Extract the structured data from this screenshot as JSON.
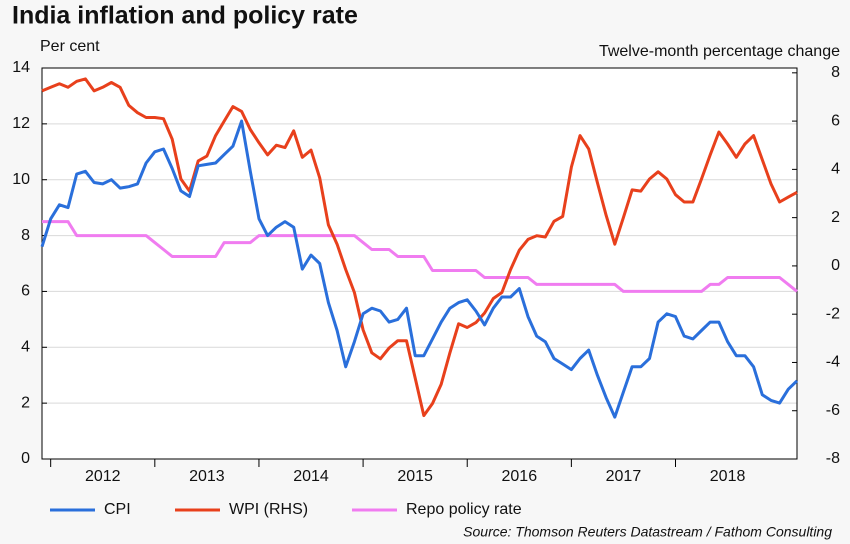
{
  "chart_data": {
    "type": "line",
    "title": "India inflation and policy rate",
    "y_label": "Per cent",
    "y2_label": "Twelve-month percentage change",
    "source": "Source: Thomson Reuters Datastream / Fathom Consulting",
    "categories": [
      null,
      null,
      null,
      null,
      null,
      null,
      null,
      "2012",
      null,
      null,
      null,
      null,
      null,
      null,
      null,
      null,
      null,
      null,
      null,
      "2013",
      null,
      null,
      null,
      null,
      null,
      null,
      null,
      null,
      null,
      null,
      null,
      "2014",
      null,
      null,
      null,
      null,
      null,
      null,
      null,
      null,
      null,
      null,
      null,
      "2015",
      null,
      null,
      null,
      null,
      null,
      null,
      null,
      null,
      null,
      null,
      null,
      "2016",
      null,
      null,
      null,
      null,
      null,
      null,
      null,
      null,
      null,
      null,
      null,
      "2017",
      null,
      null,
      null,
      null,
      null,
      null,
      null,
      null,
      null,
      null,
      null,
      "2018",
      null,
      null,
      null,
      null,
      null,
      null,
      null,
      null
    ],
    "series": [
      {
        "name": "CPI",
        "color": "#2a6fdb",
        "values": [
          7.6,
          8.6,
          9.1,
          9.0,
          10.2,
          10.3,
          9.9,
          9.85,
          10.0,
          9.7,
          9.75,
          9.85,
          10.6,
          11.0,
          11.1,
          10.4,
          9.6,
          9.4,
          10.5,
          10.55,
          10.6,
          10.9,
          11.2,
          12.1,
          10.3,
          8.6,
          8.0,
          8.3,
          8.5,
          8.3,
          6.8,
          7.3,
          7.0,
          5.6,
          4.6,
          3.3,
          4.2,
          5.2,
          5.4,
          5.3,
          4.9,
          5.0,
          5.4,
          3.7,
          3.7,
          4.3,
          4.9,
          5.4,
          5.6,
          5.7,
          5.3,
          4.8,
          5.4,
          5.8,
          5.8,
          6.1,
          5.1,
          4.4,
          4.2,
          3.6,
          3.4,
          3.2,
          3.6,
          3.9,
          3.0,
          2.2,
          1.5,
          2.4,
          3.3,
          3.3,
          3.6,
          4.9,
          5.2,
          5.1,
          4.4,
          4.3,
          4.6,
          4.9,
          4.9,
          4.2,
          3.7,
          3.7,
          3.3,
          2.3,
          2.1,
          2.0,
          2.5,
          2.8
        ]
      },
      {
        "name": "WPI (RHS)",
        "color": "#e8401c",
        "axis": "y2",
        "values": [
          7.25,
          7.4,
          7.55,
          7.4,
          7.65,
          7.75,
          7.25,
          7.4,
          7.6,
          7.4,
          6.65,
          6.35,
          6.15,
          6.15,
          6.1,
          5.25,
          3.6,
          3.1,
          4.35,
          4.55,
          5.4,
          6.0,
          6.6,
          6.4,
          5.65,
          5.1,
          4.6,
          5.0,
          4.9,
          5.6,
          4.5,
          4.8,
          3.65,
          1.7,
          0.9,
          -0.15,
          -1.1,
          -2.65,
          -3.6,
          -3.85,
          -3.4,
          -3.1,
          -3.1,
          -4.65,
          -6.2,
          -5.7,
          -4.9,
          -3.6,
          -2.4,
          -2.55,
          -2.35,
          -1.95,
          -1.35,
          -1.1,
          -0.15,
          0.65,
          1.1,
          1.25,
          1.2,
          1.85,
          2.05,
          4.1,
          5.4,
          4.85,
          3.45,
          2.1,
          0.9,
          2.0,
          3.15,
          3.1,
          3.6,
          3.9,
          3.6,
          2.95,
          2.65,
          2.65,
          3.6,
          4.6,
          5.55,
          5.05,
          4.5,
          5.05,
          5.4,
          4.4,
          3.4,
          2.65,
          2.85,
          3.05
        ]
      },
      {
        "name": "Repo policy rate",
        "color": "#f07cf0",
        "values": [
          8.5,
          8.5,
          8.5,
          8.5,
          8.0,
          8.0,
          8.0,
          8.0,
          8.0,
          8.0,
          8.0,
          8.0,
          8.0,
          7.75,
          7.5,
          7.25,
          7.25,
          7.25,
          7.25,
          7.25,
          7.25,
          7.75,
          7.75,
          7.75,
          7.75,
          8.0,
          8.0,
          8.0,
          8.0,
          8.0,
          8.0,
          8.0,
          8.0,
          8.0,
          8.0,
          8.0,
          8.0,
          7.75,
          7.5,
          7.5,
          7.5,
          7.25,
          7.25,
          7.25,
          7.25,
          6.75,
          6.75,
          6.75,
          6.75,
          6.75,
          6.75,
          6.5,
          6.5,
          6.5,
          6.5,
          6.5,
          6.5,
          6.25,
          6.25,
          6.25,
          6.25,
          6.25,
          6.25,
          6.25,
          6.25,
          6.25,
          6.25,
          6.0,
          6.0,
          6.0,
          6.0,
          6.0,
          6.0,
          6.0,
          6.0,
          6.0,
          6.0,
          6.25,
          6.25,
          6.5,
          6.5,
          6.5,
          6.5,
          6.5,
          6.5,
          6.5,
          6.25,
          6.0
        ]
      }
    ],
    "ylim": [
      0,
      14
    ],
    "yticks": [
      0,
      2,
      4,
      6,
      8,
      10,
      12,
      14
    ],
    "y2lim": [
      -8,
      8.2
    ],
    "y2ticks": [
      -8,
      -6,
      -4,
      -2,
      0,
      2,
      4,
      6,
      8
    ],
    "grid": true
  }
}
